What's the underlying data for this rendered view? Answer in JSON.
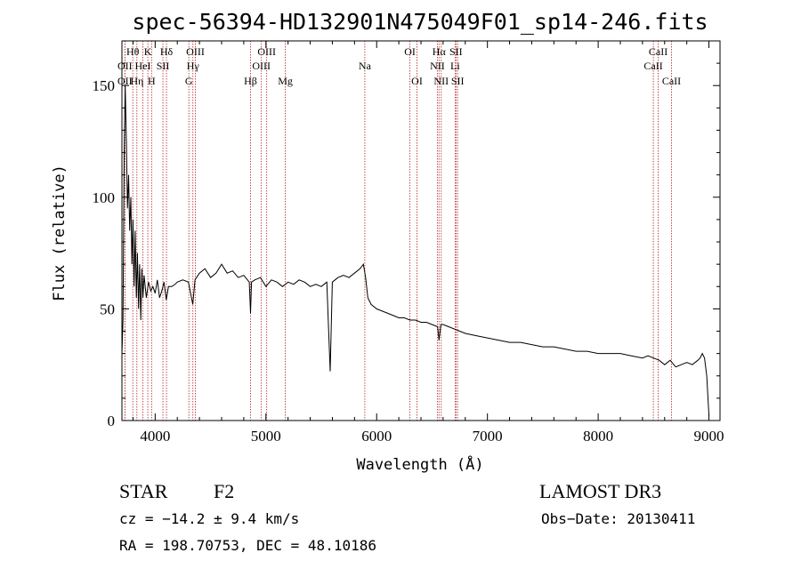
{
  "chart_data": {
    "type": "line",
    "title": "spec-56394-HD132901N475049F01_sp14-246.fits",
    "xlabel": "Wavelength (Å)",
    "ylabel": "Flux (relative)",
    "xlim": [
      3700,
      9100
    ],
    "ylim": [
      0,
      170
    ],
    "xticks": [
      4000,
      5000,
      6000,
      7000,
      8000,
      9000
    ],
    "yticks": [
      0,
      50,
      100,
      150
    ],
    "series": [
      {
        "name": "flux",
        "x": [
          3700,
          3710,
          3720,
          3730,
          3740,
          3750,
          3760,
          3770,
          3780,
          3790,
          3800,
          3810,
          3820,
          3830,
          3840,
          3850,
          3860,
          3870,
          3880,
          3890,
          3900,
          3920,
          3940,
          3960,
          3980,
          4000,
          4020,
          4040,
          4060,
          4080,
          4100,
          4120,
          4150,
          4180,
          4200,
          4250,
          4300,
          4340,
          4360,
          4400,
          4450,
          4500,
          4550,
          4600,
          4650,
          4700,
          4750,
          4800,
          4850,
          4861,
          4870,
          4900,
          4950,
          5000,
          5050,
          5100,
          5150,
          5200,
          5250,
          5300,
          5350,
          5400,
          5450,
          5500,
          5550,
          5580,
          5600,
          5650,
          5700,
          5750,
          5800,
          5850,
          5880,
          5900,
          5920,
          5950,
          6000,
          6050,
          6100,
          6150,
          6200,
          6250,
          6300,
          6350,
          6400,
          6450,
          6500,
          6550,
          6563,
          6580,
          6600,
          6650,
          6700,
          6750,
          6800,
          6900,
          7000,
          7100,
          7200,
          7300,
          7400,
          7500,
          7600,
          7700,
          7800,
          7900,
          8000,
          8100,
          8200,
          8300,
          8400,
          8450,
          8500,
          8550,
          8600,
          8650,
          8700,
          8750,
          8800,
          8850,
          8900,
          8920,
          8940,
          8960,
          8980,
          9000
        ],
        "values": [
          30,
          45,
          120,
          150,
          125,
          95,
          110,
          85,
          100,
          70,
          90,
          60,
          85,
          55,
          75,
          50,
          70,
          45,
          68,
          55,
          65,
          55,
          62,
          58,
          60,
          57,
          63,
          55,
          58,
          62,
          54,
          60,
          60,
          61,
          62,
          63,
          62,
          52,
          63,
          66,
          68,
          64,
          66,
          70,
          66,
          67,
          64,
          65,
          62,
          48,
          62,
          63,
          64,
          60,
          63,
          62,
          60,
          62,
          61,
          63,
          62,
          60,
          61,
          60,
          62,
          22,
          62,
          64,
          65,
          64,
          66,
          68,
          70,
          64,
          55,
          52,
          50,
          49,
          48,
          47,
          46,
          46,
          45,
          45,
          44,
          44,
          43,
          42,
          36,
          43,
          43,
          42,
          41,
          40,
          39,
          38,
          37,
          36,
          35,
          35,
          34,
          33,
          33,
          32,
          31,
          31,
          30,
          30,
          30,
          29,
          28,
          29,
          28,
          27,
          25,
          27,
          24,
          25,
          26,
          25,
          27,
          28,
          30,
          28,
          20,
          2
        ]
      }
    ],
    "spectral_lines": [
      {
        "label": "Hθ",
        "x": 3798,
        "row": 1
      },
      {
        "label": "OII",
        "x": 3727,
        "row": 2
      },
      {
        "label": "OII",
        "x": 3727,
        "row": 3
      },
      {
        "label": "Hη",
        "x": 3835,
        "row": 3
      },
      {
        "label": "K",
        "x": 3934,
        "row": 1
      },
      {
        "label": "HeI",
        "x": 3889,
        "row": 2
      },
      {
        "label": "H",
        "x": 3968,
        "row": 3
      },
      {
        "label": "Hδ",
        "x": 4102,
        "row": 1
      },
      {
        "label": "SII",
        "x": 4070,
        "row": 2
      },
      {
        "label": "OIII",
        "x": 4363,
        "row": 1
      },
      {
        "label": "Hγ",
        "x": 4341,
        "row": 2
      },
      {
        "label": "G",
        "x": 4304,
        "row": 3
      },
      {
        "label": "Hβ",
        "x": 4861,
        "row": 3
      },
      {
        "label": "OIII",
        "x": 4959,
        "row": 2
      },
      {
        "label": "OIII",
        "x": 5007,
        "row": 1
      },
      {
        "label": "Mg",
        "x": 5175,
        "row": 3
      },
      {
        "label": "Na",
        "x": 5893,
        "row": 2
      },
      {
        "label": "OI",
        "x": 6300,
        "row": 1
      },
      {
        "label": "OI",
        "x": 6364,
        "row": 3
      },
      {
        "label": "NII",
        "x": 6548,
        "row": 2
      },
      {
        "label": "Hα",
        "x": 6563,
        "row": 1
      },
      {
        "label": "NII",
        "x": 6583,
        "row": 3
      },
      {
        "label": "SII",
        "x": 6716,
        "row": 1
      },
      {
        "label": "Li",
        "x": 6708,
        "row": 2
      },
      {
        "label": "SII",
        "x": 6731,
        "row": 3
      },
      {
        "label": "CaII",
        "x": 8498,
        "row": 2
      },
      {
        "label": "CaII",
        "x": 8542,
        "row": 1
      },
      {
        "label": "CaII",
        "x": 8662,
        "row": 3
      }
    ]
  },
  "info": {
    "object_class": "STAR",
    "subclass": "F2",
    "survey": "LAMOST DR3",
    "cz": "cz = −14.2 ± 9.4 km/s",
    "obs_date": "Obs−Date: 20130411",
    "coords": "RA = 198.70753, DEC =  48.10186"
  },
  "colors": {
    "line_marker": "#b22222",
    "spectrum": "#000000"
  }
}
